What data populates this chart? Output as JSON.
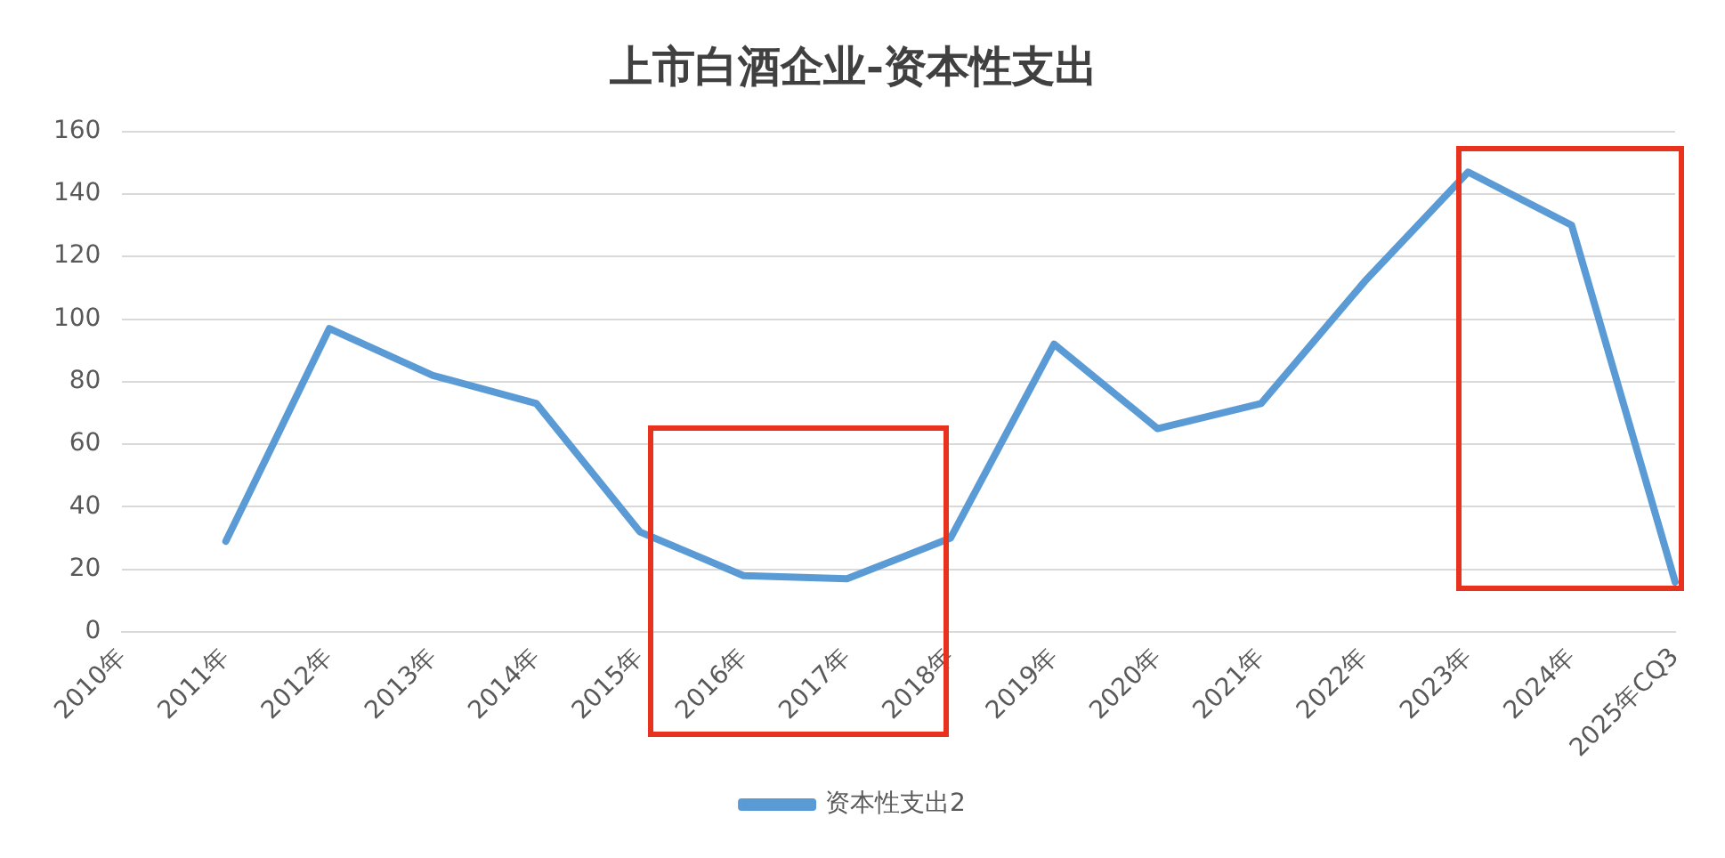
{
  "chart_data": {
    "type": "line",
    "title": "上市白酒企业-资本性支出",
    "categories": [
      "2010年",
      "2011年",
      "2012年",
      "2013年",
      "2014年",
      "2015年",
      "2016年",
      "2017年",
      "2018年",
      "2019年",
      "2020年",
      "2021年",
      "2022年",
      "2023年",
      "2024年",
      "2025年CQ3"
    ],
    "series": [
      {
        "name": "资本性支出2",
        "color": "#5b9bd5",
        "values": [
          null,
          29,
          97,
          82,
          73,
          32,
          18,
          17,
          30,
          92,
          65,
          73,
          112,
          147,
          130,
          16
        ]
      }
    ],
    "ylim": [
      0,
      160
    ],
    "yticks": [
      0,
      20,
      40,
      60,
      80,
      100,
      120,
      140,
      160
    ],
    "grid": "y",
    "legend": "bottom",
    "marker": "none"
  }
}
